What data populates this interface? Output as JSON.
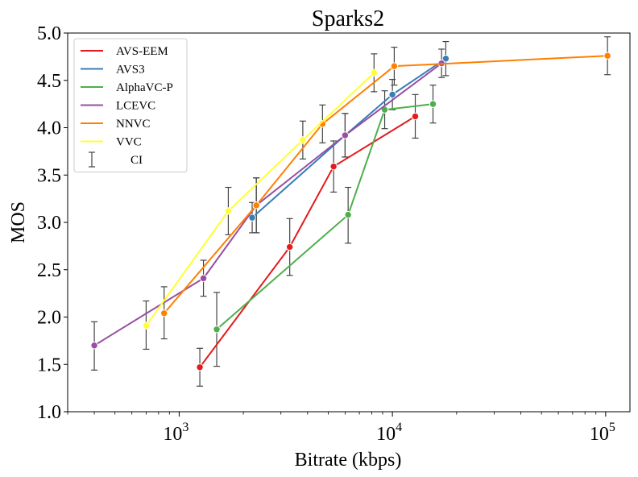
{
  "chart_data": {
    "type": "line",
    "title": "Sparks2",
    "xlabel": "Bitrate (kbps)",
    "ylabel": "MOS",
    "x_scale": "log",
    "xlim": [
      300,
      130000
    ],
    "ylim": [
      1.0,
      5.0
    ],
    "yticks": [
      "1.0",
      "1.5",
      "2.0",
      "2.5",
      "3.0",
      "3.5",
      "4.0",
      "4.5",
      "5.0"
    ],
    "xticks": [
      {
        "value": 1000,
        "base": "10",
        "exp": "3"
      },
      {
        "value": 10000,
        "base": "10",
        "exp": "4"
      },
      {
        "value": 100000,
        "base": "10",
        "exp": "5"
      }
    ],
    "legend_position": "top-left",
    "ci_label": "CI",
    "ci_color": "#444444",
    "series": [
      {
        "name": "AVS-EEM",
        "color": "#e41a1c",
        "x": [
          1250,
          3300,
          5300,
          12800
        ],
        "y": [
          1.47,
          2.74,
          3.59,
          4.12
        ],
        "ci": [
          [
            1.27,
            1.67
          ],
          [
            2.44,
            3.04
          ],
          [
            3.32,
            3.86
          ],
          [
            3.89,
            4.35
          ]
        ]
      },
      {
        "name": "AVS3",
        "color": "#377eb8",
        "x": [
          2200,
          6000,
          10000,
          17800
        ],
        "y": [
          3.05,
          3.92,
          4.35,
          4.73
        ],
        "ci": [
          [
            2.89,
            3.21
          ],
          [
            3.69,
            4.15
          ],
          [
            4.19,
            4.51
          ],
          [
            4.55,
            4.91
          ]
        ]
      },
      {
        "name": "AlphaVC-P",
        "color": "#4daf4a",
        "x": [
          1500,
          6200,
          9200,
          15500
        ],
        "y": [
          1.87,
          3.08,
          4.19,
          4.25
        ],
        "ci": [
          [
            1.48,
            2.26
          ],
          [
            2.78,
            3.37
          ],
          [
            3.99,
            4.39
          ],
          [
            4.05,
            4.45
          ]
        ]
      },
      {
        "name": "LCEVC",
        "color": "#984ea3",
        "x": [
          400,
          1300,
          2300,
          6000,
          17000
        ],
        "y": [
          1.7,
          2.41,
          3.18,
          3.92,
          4.68
        ],
        "ci": [
          [
            1.44,
            1.95
          ],
          [
            2.22,
            2.6
          ],
          [
            2.89,
            3.47
          ],
          [
            3.69,
            4.15
          ],
          [
            4.53,
            4.83
          ]
        ]
      },
      {
        "name": "NNVC",
        "color": "#ff7f00",
        "x": [
          850,
          2300,
          4700,
          10200,
          102000
        ],
        "y": [
          2.04,
          3.18,
          4.04,
          4.65,
          4.76
        ],
        "ci": [
          [
            1.77,
            2.32
          ],
          [
            2.89,
            3.47
          ],
          [
            3.84,
            4.24
          ],
          [
            4.45,
            4.85
          ],
          [
            4.56,
            4.96
          ]
        ]
      },
      {
        "name": "VVC",
        "color": "#ffff33",
        "x": [
          700,
          1700,
          3800,
          8200
        ],
        "y": [
          1.91,
          3.12,
          3.87,
          4.58
        ],
        "ci": [
          [
            1.66,
            2.17
          ],
          [
            2.87,
            3.37
          ],
          [
            3.67,
            4.07
          ],
          [
            4.38,
            4.78
          ]
        ]
      }
    ]
  }
}
